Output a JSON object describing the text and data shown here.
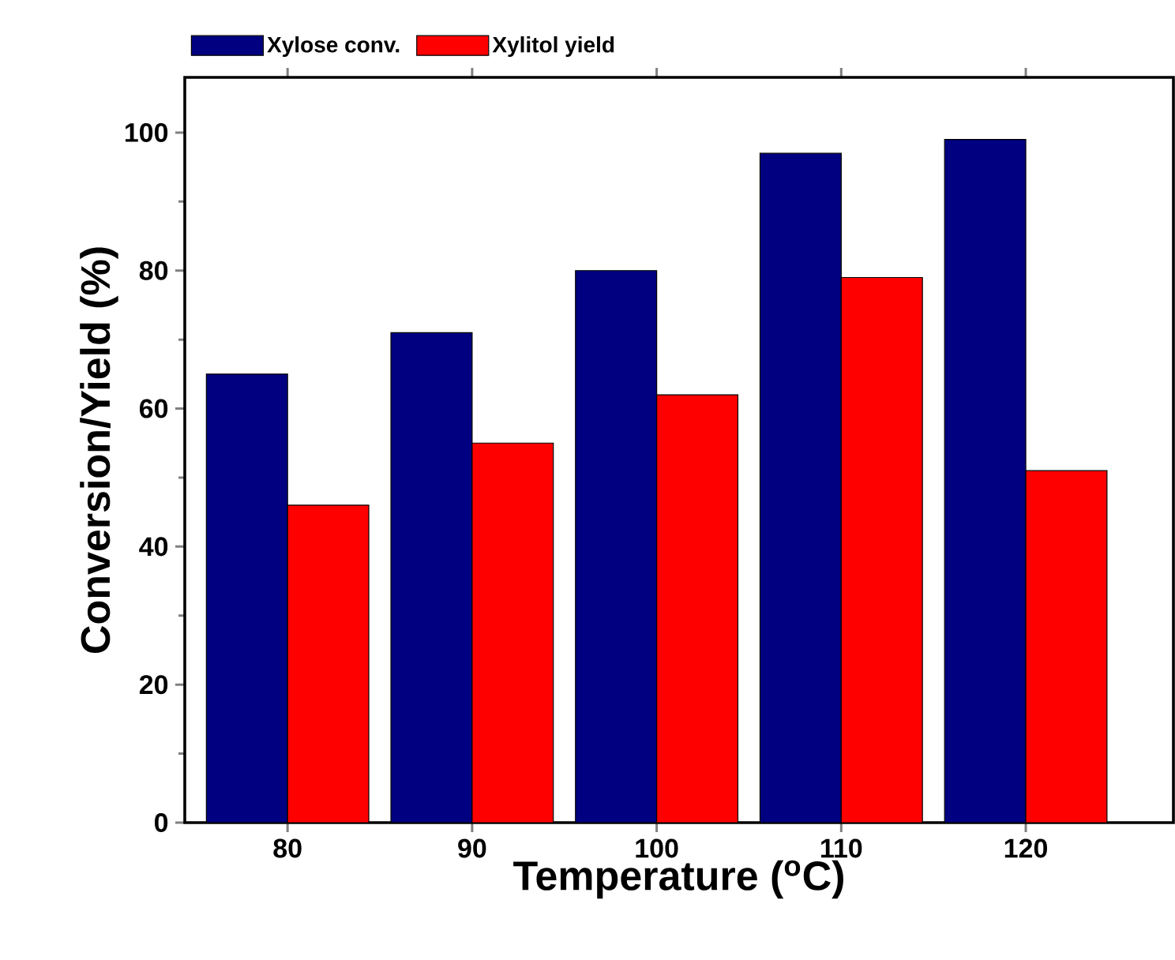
{
  "chart_data": {
    "type": "bar",
    "xlabel": "Temperature ($^{o}$C)",
    "ylabel": "Conversion/Yield (%)",
    "categories": [
      "80",
      "90",
      "100",
      "110",
      "120"
    ],
    "series": [
      {
        "name": "Xylose conv.",
        "color": "#000080",
        "values": [
          65,
          71,
          80,
          97,
          99
        ]
      },
      {
        "name": "Xylitol yield",
        "color": "#ff0000",
        "values": [
          46,
          55,
          62,
          79,
          51
        ]
      }
    ],
    "ylim": [
      0,
      108
    ],
    "yticks": [
      0,
      20,
      40,
      60,
      80,
      100
    ],
    "legend": "top"
  }
}
